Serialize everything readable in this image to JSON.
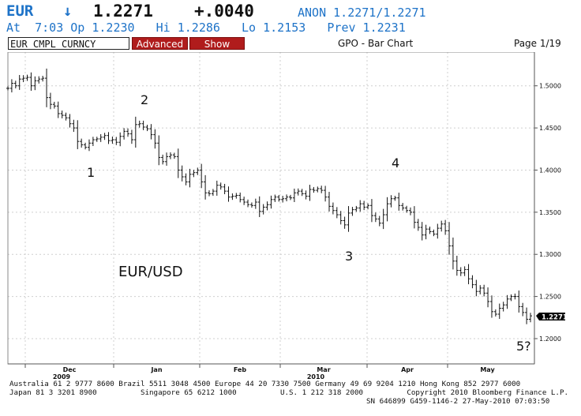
{
  "header": {
    "symbol": "EUR",
    "arrow": "↓",
    "last": "1.2271",
    "change": "+.0040",
    "source": "ANON 1.2271/1.2271",
    "line2": "At  7:03 Op 1.2230   Hi 1.2286   Lo 1.2153   Prev 1.2231"
  },
  "toolbar": {
    "ticker": "EUR CMPL CURNCY",
    "advanced_label": "Advanced",
    "show_label": "Show",
    "graph_title": "GPO - Bar Chart",
    "page": "Page 1/19"
  },
  "chart_data": {
    "type": "bar",
    "title": "EUR/USD",
    "x_tick_labels": [
      "Dec",
      "Jan",
      "Feb",
      "Mar",
      "Apr",
      "May"
    ],
    "year_labels": [
      {
        "label": "2009",
        "under": "Dec"
      },
      {
        "label": "2010",
        "under": "Mar"
      }
    ],
    "y_tick_labels": [
      "1.5000",
      "1.4500",
      "1.4000",
      "1.3500",
      "1.3000",
      "1.2500",
      "1.2000"
    ],
    "ylim": [
      1.17,
      1.54
    ],
    "last_price_label": "1.2271",
    "wave_labels": [
      "1",
      "2",
      "3",
      "4",
      "5?"
    ],
    "grid": true,
    "closes": [
      1.497,
      1.503,
      1.5,
      1.508,
      1.509,
      1.51,
      1.5,
      1.506,
      1.508,
      1.509,
      1.486,
      1.478,
      1.476,
      1.467,
      1.465,
      1.462,
      1.455,
      1.45,
      1.434,
      1.43,
      1.427,
      1.432,
      1.436,
      1.437,
      1.439,
      1.441,
      1.435,
      1.436,
      1.433,
      1.44,
      1.446,
      1.443,
      1.436,
      1.454,
      1.455,
      1.451,
      1.449,
      1.442,
      1.432,
      1.415,
      1.41,
      1.416,
      1.418,
      1.416,
      1.4,
      1.392,
      1.386,
      1.395,
      1.397,
      1.4,
      1.386,
      1.373,
      1.372,
      1.375,
      1.382,
      1.38,
      1.375,
      1.368,
      1.369,
      1.37,
      1.365,
      1.362,
      1.359,
      1.358,
      1.362,
      1.351,
      1.356,
      1.359,
      1.365,
      1.368,
      1.365,
      1.366,
      1.368,
      1.367,
      1.373,
      1.375,
      1.372,
      1.369,
      1.377,
      1.376,
      1.378,
      1.376,
      1.368,
      1.357,
      1.352,
      1.347,
      1.34,
      1.335,
      1.349,
      1.353,
      1.355,
      1.36,
      1.356,
      1.358,
      1.346,
      1.342,
      1.337,
      1.347,
      1.36,
      1.366,
      1.367,
      1.358,
      1.355,
      1.352,
      1.35,
      1.338,
      1.332,
      1.323,
      1.33,
      1.327,
      1.324,
      1.331,
      1.336,
      1.328,
      1.31,
      1.292,
      1.281,
      1.278,
      1.282,
      1.271,
      1.264,
      1.256,
      1.26,
      1.254,
      1.244,
      1.232,
      1.229,
      1.236,
      1.24,
      1.247,
      1.25,
      1.25,
      1.238,
      1.231,
      1.223,
      1.227
    ]
  },
  "footer": {
    "line1": "Australia 61 2 9777 8600 Brazil 5511 3048 4500 Europe 44 20 7330 7500 Germany 49 69 9204 1210 Hong Kong 852 2977 6000",
    "line2": "Japan 81 3 3201 8900          Singapore 65 6212 1000          U.S. 1 212 318 2000          Copyright 2010 Bloomberg Finance L.P.",
    "line3": "SN 646899 G459-1146-2 27-May-2010 07:03:50"
  }
}
